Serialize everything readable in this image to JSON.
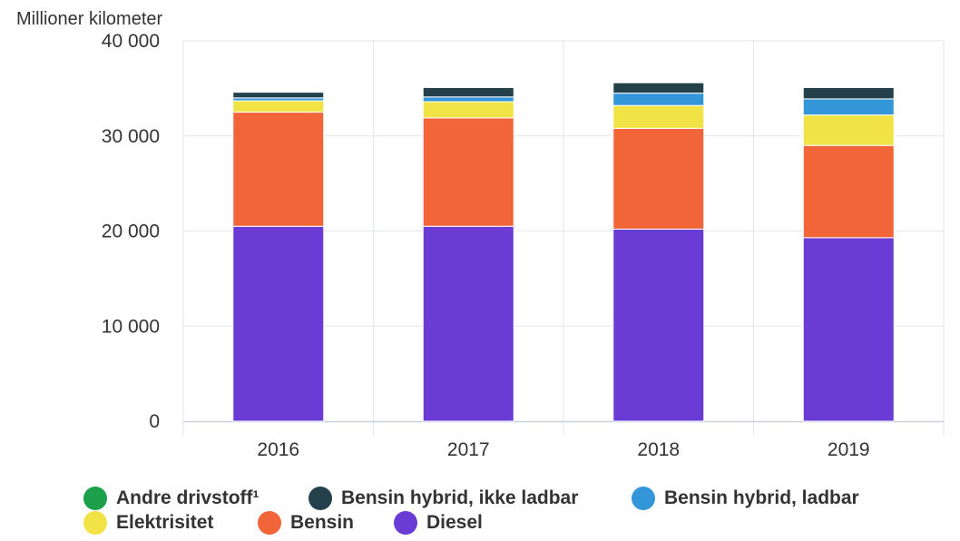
{
  "chart_data": {
    "type": "bar",
    "stacked": true,
    "title": "",
    "ylabel": "Millioner kilometer",
    "xlabel": "",
    "categories": [
      "2016",
      "2017",
      "2018",
      "2019"
    ],
    "ylim": [
      0,
      40000
    ],
    "yticks": [
      {
        "value": 0,
        "label": "0"
      },
      {
        "value": 10000,
        "label": "10 000"
      },
      {
        "value": 20000,
        "label": "20 000"
      },
      {
        "value": 30000,
        "label": "30 000"
      },
      {
        "value": 40000,
        "label": "40 000"
      }
    ],
    "grid": true,
    "legend_position": "bottom",
    "series": [
      {
        "name": "Diesel",
        "color": "#6a3bd5",
        "values": [
          20500,
          20500,
          20200,
          19300
        ]
      },
      {
        "name": "Bensin",
        "color": "#f26539",
        "values": [
          12000,
          11400,
          10600,
          9700
        ]
      },
      {
        "name": "Elektrisitet",
        "color": "#f1e346",
        "values": [
          1200,
          1700,
          2400,
          3200
        ]
      },
      {
        "name": "Bensin hybrid, ladbar",
        "color": "#3296d9",
        "values": [
          300,
          500,
          1300,
          1700
        ]
      },
      {
        "name": "Bensin hybrid, ikke ladbar",
        "color": "#24404a",
        "values": [
          600,
          1000,
          1100,
          1200
        ]
      },
      {
        "name": "Andre drivstoff¹",
        "color": "#1ca04c",
        "values": [
          50,
          50,
          50,
          50
        ]
      }
    ],
    "legend_order": [
      "Andre drivstoff¹",
      "Bensin hybrid, ikke ladbar",
      "Bensin hybrid, ladbar",
      "Elektrisitet",
      "Bensin",
      "Diesel"
    ]
  }
}
